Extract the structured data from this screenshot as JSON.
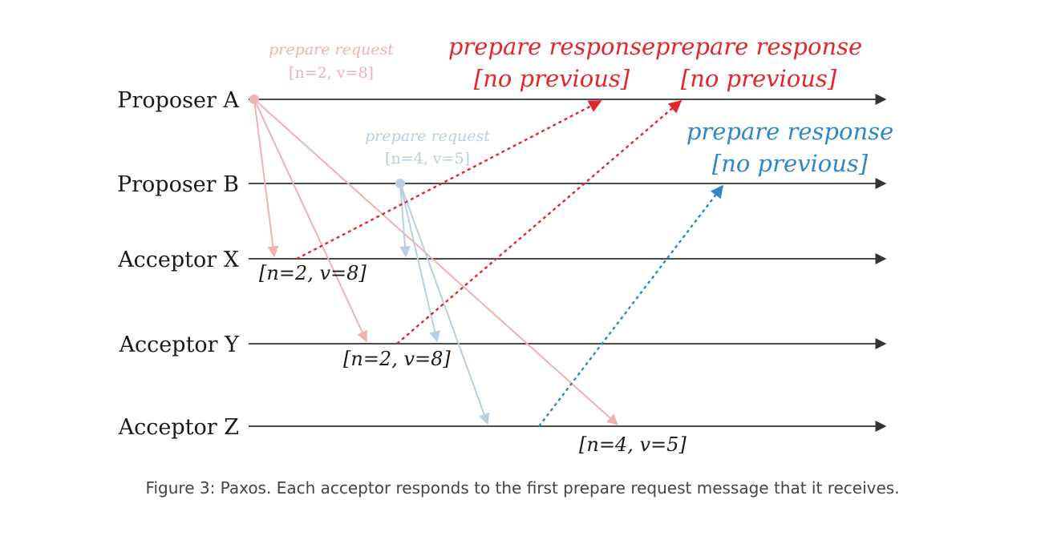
{
  "timelines": [
    {
      "id": "proposer-a",
      "label": "Proposer A"
    },
    {
      "id": "proposer-b",
      "label": "Proposer B"
    },
    {
      "id": "acceptor-x",
      "label": "Acceptor X"
    },
    {
      "id": "acceptor-y",
      "label": "Acceptor Y"
    },
    {
      "id": "acceptor-z",
      "label": "Acceptor Z"
    }
  ],
  "requests": {
    "a": {
      "title": "prepare request",
      "value": "[n=2, v=8]",
      "color": "#eeb2b2"
    },
    "b": {
      "title": "prepare request",
      "value": "[n=4, v=5]",
      "color": "#b9cfe4"
    }
  },
  "responses": [
    {
      "title": "prepare response",
      "value": "[no previous]",
      "color": "#e3262a"
    },
    {
      "title": "prepare response",
      "value": "[no previous]",
      "color": "#e3262a"
    },
    {
      "title": "prepare response",
      "value": "[no previous]",
      "color": "#2e87c8"
    }
  ],
  "acceptor_values": {
    "x": "[n=2, v=8]",
    "y": "[n=2, v=8]",
    "z": "[n=4, v=5]"
  },
  "caption": "Figure 3: Paxos. Each acceptor responds to the first prepare request message that it receives."
}
